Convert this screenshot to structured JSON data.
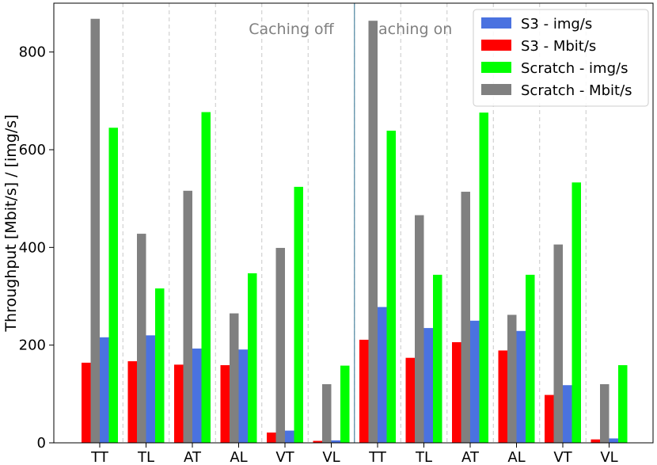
{
  "chart_data": {
    "type": "bar",
    "title": "",
    "xlabel": "",
    "ylabel": "Throughput [Mbit/s] / [img/s]",
    "ylim": [
      0,
      900
    ],
    "yticks": [
      0,
      200,
      400,
      600,
      800
    ],
    "grid": "vertical dashed",
    "legend_position": "top-right",
    "categories": [
      "TT",
      "TL",
      "AT",
      "AL",
      "VT",
      "VL",
      "TT",
      "TL",
      "AT",
      "AL",
      "VT",
      "VL"
    ],
    "sections": [
      {
        "label": "Caching off",
        "categories": [
          0,
          1,
          2,
          3,
          4,
          5
        ]
      },
      {
        "label": "Caching on",
        "categories": [
          6,
          7,
          8,
          9,
          10,
          11
        ]
      }
    ],
    "series_order": [
      {
        "name": "S3 - Mbit/s",
        "color": "#ff0000",
        "values": [
          164,
          167,
          160,
          159,
          21,
          4,
          211,
          174,
          206,
          189,
          98,
          7
        ]
      },
      {
        "name": "Scratch - Mbit/s",
        "color": "#808080",
        "values": [
          868,
          428,
          516,
          265,
          399,
          120,
          864,
          466,
          514,
          262,
          406,
          120
        ]
      },
      {
        "name": "S3 - img/s",
        "color": "#4a72e0",
        "values": [
          216,
          220,
          193,
          191,
          25,
          5,
          278,
          235,
          250,
          229,
          118,
          9
        ]
      },
      {
        "name": "Scratch - img/s",
        "color": "#00ff00",
        "values": [
          645,
          316,
          677,
          347,
          524,
          158,
          639,
          344,
          676,
          344,
          533,
          159
        ]
      }
    ],
    "legend": [
      {
        "name": "S3 - img/s",
        "color": "#4a72e0"
      },
      {
        "name": "S3 - Mbit/s",
        "color": "#ff0000"
      },
      {
        "name": "Scratch - img/s",
        "color": "#00ff00"
      },
      {
        "name": "Scratch - Mbit/s",
        "color": "#808080"
      }
    ]
  }
}
